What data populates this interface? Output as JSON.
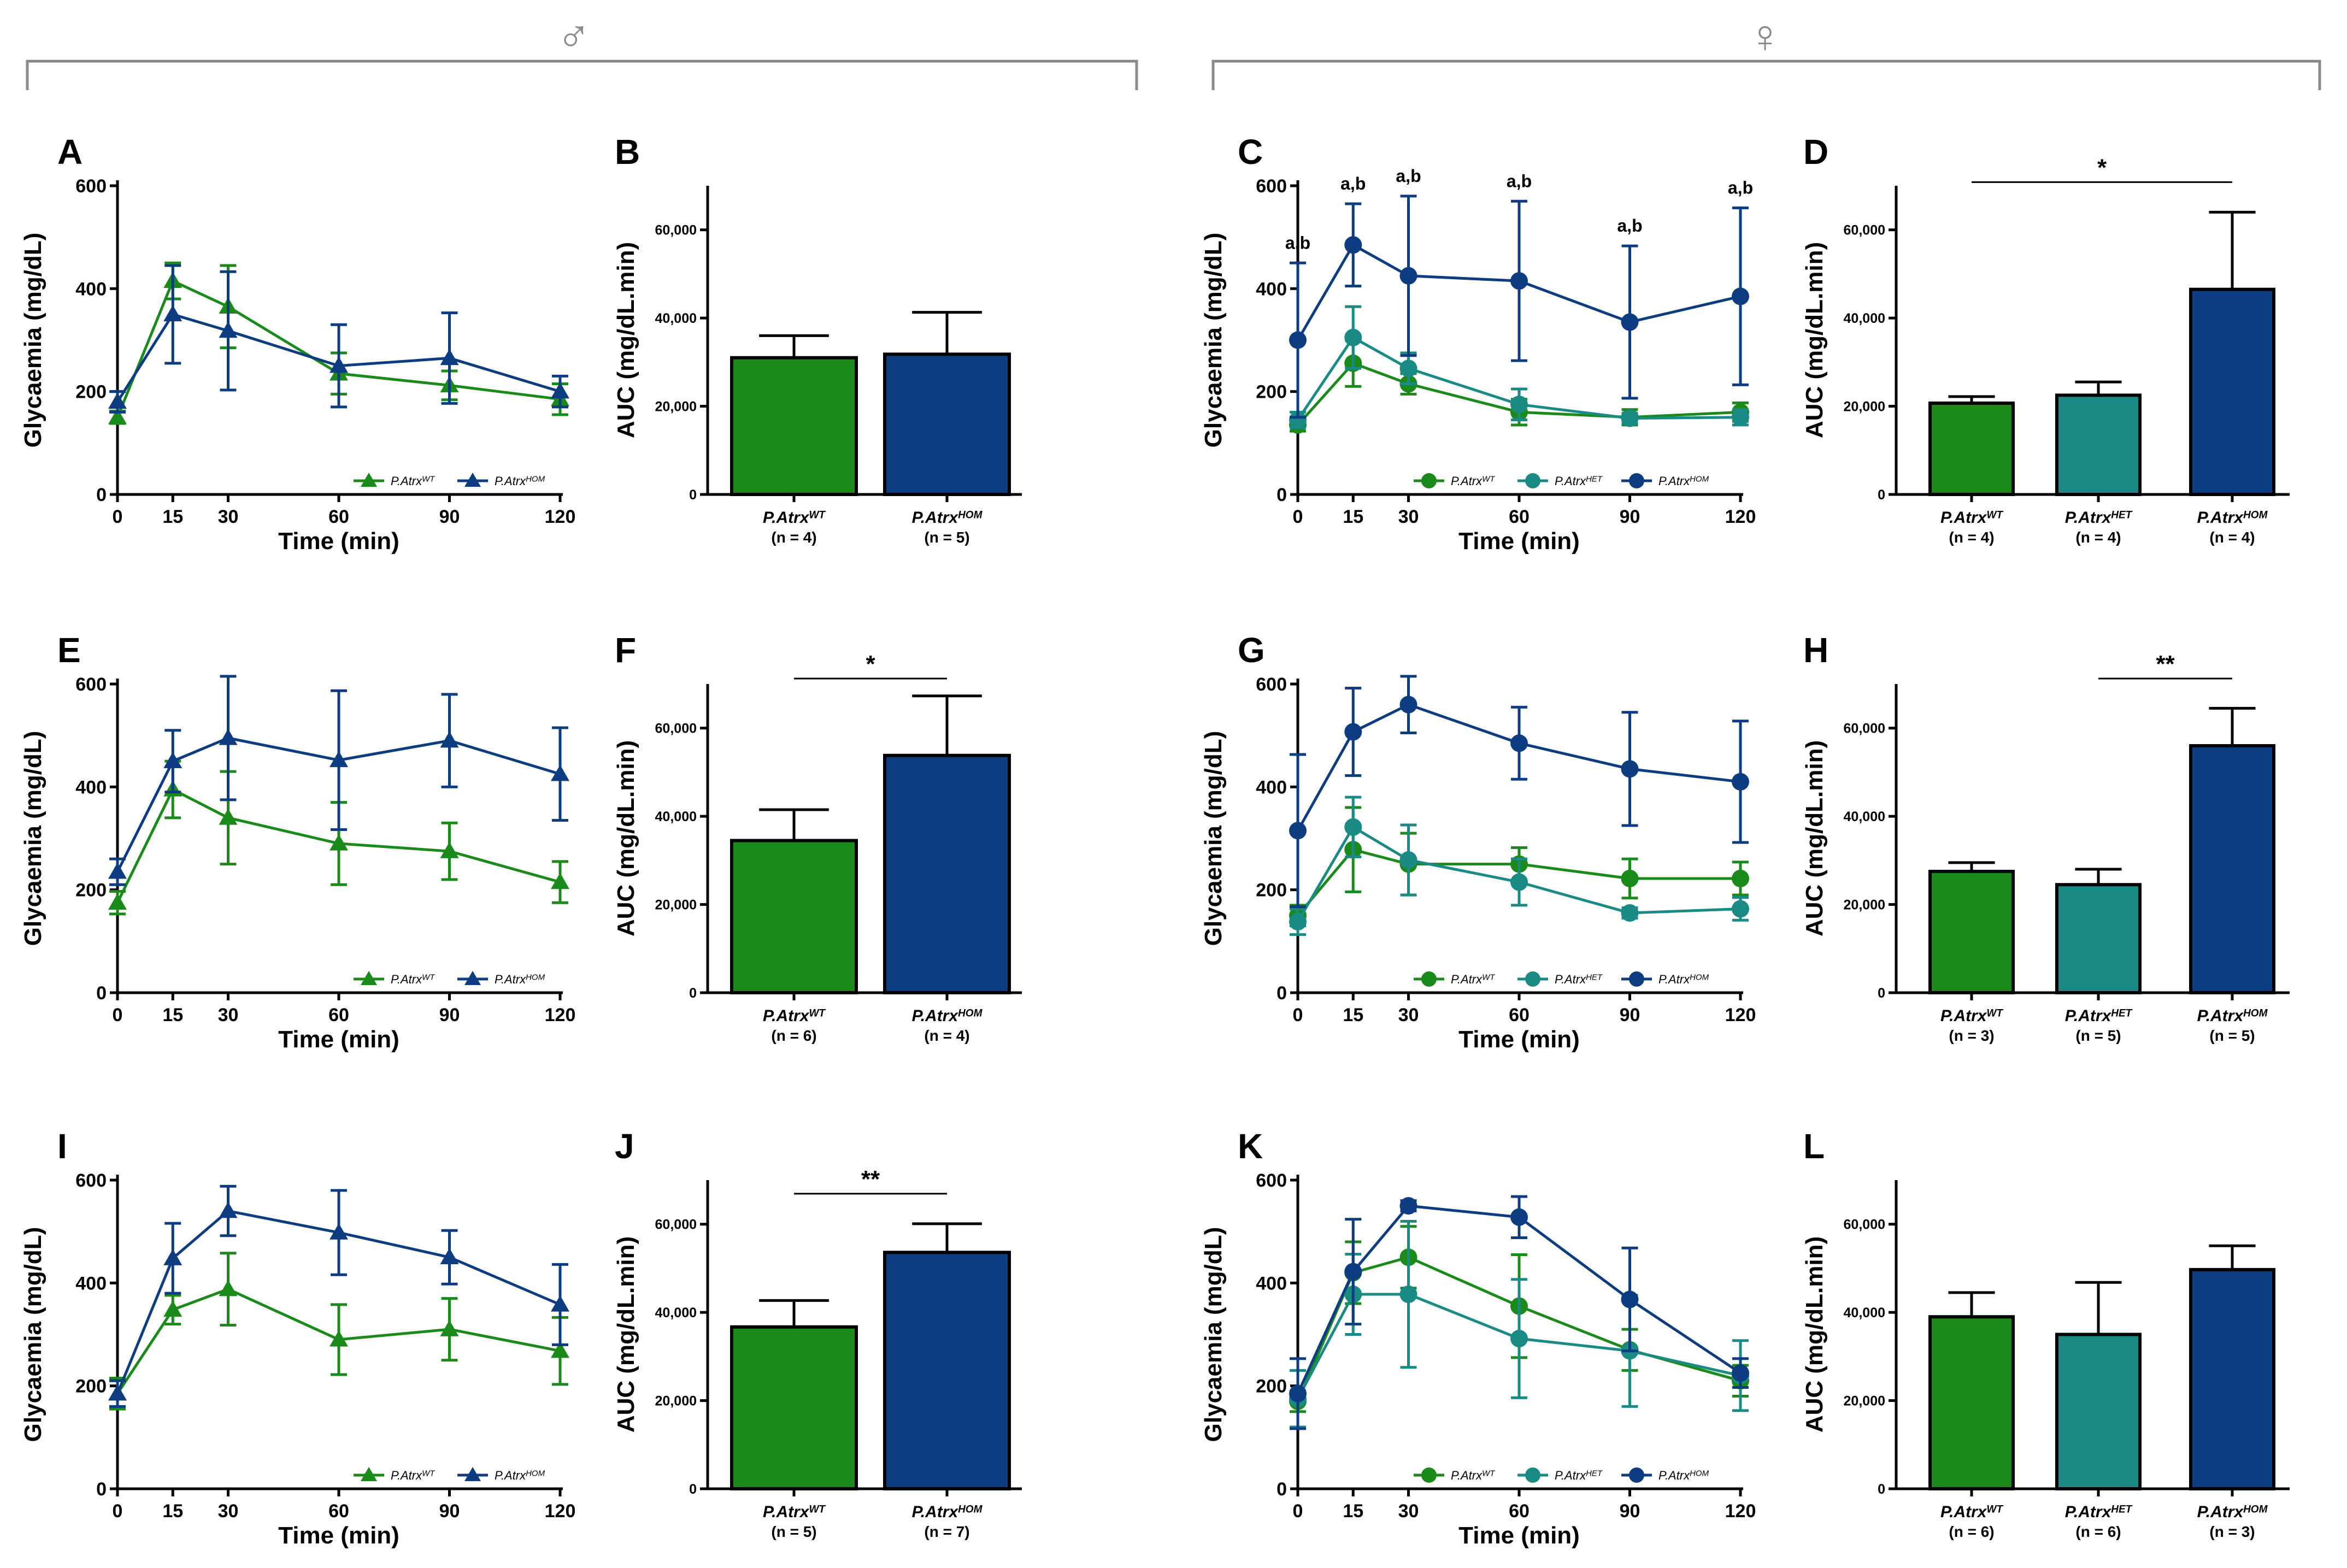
{
  "colors": {
    "wt": "#1a8a1a",
    "het": "#1a8a84",
    "hom": "#0d3d80",
    "bracket": "#8a8a8a"
  },
  "sex_groups": {
    "male_symbol": "♂",
    "female_symbol": "♀"
  },
  "chart_data": [
    {
      "id": "A",
      "type": "line",
      "panel_label": "A",
      "sex": "male",
      "marker": "triangle",
      "xlabel": "Time (min)",
      "ylabel": "Glycaemia (mg/dL)",
      "x": [
        0,
        15,
        30,
        60,
        90,
        120
      ],
      "xticks": [
        "0",
        "15",
        "30",
        "60",
        "90",
        "120"
      ],
      "ylim": [
        0,
        600
      ],
      "yticks": [
        "0",
        "200",
        "400",
        "600"
      ],
      "series": [
        {
          "name": "P.Atrx",
          "sup": "WT",
          "color_key": "wt",
          "values": [
            150,
            415,
            365,
            235,
            212,
            185
          ],
          "errors": [
            12,
            35,
            80,
            40,
            28,
            30
          ]
        },
        {
          "name": "P.Atrx",
          "sup": "HOM",
          "color_key": "hom",
          "values": [
            180,
            350,
            318,
            250,
            265,
            200
          ],
          "errors": [
            20,
            95,
            115,
            80,
            88,
            30
          ]
        }
      ]
    },
    {
      "id": "B",
      "type": "bar",
      "panel_label": "B",
      "sex": "male",
      "ylabel": "AUC (mg/dL.min)",
      "ylim": [
        0,
        70000
      ],
      "yticks": [
        "0",
        "20,000",
        "40,000",
        "60,000"
      ],
      "ytick_values": [
        0,
        20000,
        40000,
        60000
      ],
      "bars": [
        {
          "name": "P.Atrx",
          "sup": "WT",
          "n": "(n = 4)",
          "color_key": "wt",
          "value": 31000,
          "error": 5000
        },
        {
          "name": "P.Atrx",
          "sup": "HOM",
          "n": "(n = 5)",
          "color_key": "hom",
          "value": 31800,
          "error": 9500
        }
      ],
      "significance": []
    },
    {
      "id": "C",
      "type": "line",
      "panel_label": "C",
      "sex": "female",
      "marker": "circle",
      "xlabel": "Time (min)",
      "ylabel": "Glycaemia (mg/dL)",
      "x": [
        0,
        15,
        30,
        60,
        90,
        120
      ],
      "xticks": [
        "0",
        "15",
        "30",
        "60",
        "90",
        "120"
      ],
      "ylim": [
        0,
        600
      ],
      "yticks": [
        "0",
        "200",
        "400",
        "600"
      ],
      "series": [
        {
          "name": "P.Atrx",
          "sup": "WT",
          "color_key": "wt",
          "values": [
            135,
            255,
            215,
            160,
            150,
            160
          ],
          "errors": [
            12,
            45,
            20,
            25,
            15,
            18
          ]
        },
        {
          "name": "P.Atrx",
          "sup": "HET",
          "color_key": "het",
          "values": [
            145,
            305,
            245,
            175,
            148,
            150
          ],
          "errors": [
            15,
            60,
            30,
            30,
            10,
            15
          ]
        },
        {
          "name": "P.Atrx",
          "sup": "HOM",
          "color_key": "hom",
          "values": [
            300,
            485,
            425,
            415,
            335,
            385
          ],
          "errors": [
            150,
            80,
            155,
            155,
            148,
            172
          ]
        }
      ],
      "annotations": [
        "a,b",
        "a,b",
        "a,b",
        "a,b",
        "a,b",
        "a,b"
      ]
    },
    {
      "id": "D",
      "type": "bar",
      "panel_label": "D",
      "sex": "female",
      "ylabel": "AUC (mg/dL.min)",
      "ylim": [
        0,
        70000
      ],
      "yticks": [
        "0",
        "20,000",
        "40,000",
        "60,000"
      ],
      "ytick_values": [
        0,
        20000,
        40000,
        60000
      ],
      "bars": [
        {
          "name": "P.Atrx",
          "sup": "WT",
          "n": "(n = 4)",
          "color_key": "wt",
          "value": 20700,
          "error": 1500
        },
        {
          "name": "P.Atrx",
          "sup": "HET",
          "n": "(n = 4)",
          "color_key": "het",
          "value": 22500,
          "error": 3000
        },
        {
          "name": "P.Atrx",
          "sup": "HOM",
          "n": "(n = 4)",
          "color_key": "hom",
          "value": 46500,
          "error": 17500
        }
      ],
      "significance": [
        {
          "from": 0,
          "to": 2,
          "label": "*"
        }
      ]
    },
    {
      "id": "E",
      "type": "line",
      "panel_label": "E",
      "sex": "male",
      "marker": "triangle",
      "xlabel": "Time (min)",
      "ylabel": "Glycaemia (mg/dL)",
      "x": [
        0,
        15,
        30,
        60,
        90,
        120
      ],
      "xticks": [
        "0",
        "15",
        "30",
        "60",
        "90",
        "120"
      ],
      "ylim": [
        0,
        600
      ],
      "yticks": [
        "0",
        "200",
        "400",
        "600"
      ],
      "series": [
        {
          "name": "P.Atrx",
          "sup": "WT",
          "color_key": "wt",
          "values": [
            175,
            395,
            340,
            290,
            275,
            215
          ],
          "errors": [
            22,
            55,
            90,
            80,
            55,
            40
          ]
        },
        {
          "name": "P.Atrx",
          "sup": "HOM",
          "color_key": "hom",
          "values": [
            235,
            450,
            495,
            452,
            490,
            425
          ],
          "errors": [
            25,
            60,
            120,
            135,
            90,
            90
          ]
        }
      ]
    },
    {
      "id": "F",
      "type": "bar",
      "panel_label": "F",
      "sex": "male",
      "ylabel": "AUC (mg/dL.min)",
      "ylim": [
        0,
        70000
      ],
      "yticks": [
        "0",
        "20,000",
        "40,000",
        "60,000"
      ],
      "ytick_values": [
        0,
        20000,
        40000,
        60000
      ],
      "bars": [
        {
          "name": "P.Atrx",
          "sup": "WT",
          "n": "(n = 6)",
          "color_key": "wt",
          "value": 34500,
          "error": 7000
        },
        {
          "name": "P.Atrx",
          "sup": "HOM",
          "n": "(n = 4)",
          "color_key": "hom",
          "value": 53800,
          "error": 13500
        }
      ],
      "significance": [
        {
          "from": 0,
          "to": 1,
          "label": "*"
        }
      ]
    },
    {
      "id": "G",
      "type": "line",
      "panel_label": "G",
      "sex": "female",
      "marker": "circle",
      "xlabel": "Time (min)",
      "ylabel": "Glycaemia (mg/dL)",
      "x": [
        0,
        15,
        30,
        60,
        90,
        120
      ],
      "xticks": [
        "0",
        "15",
        "30",
        "60",
        "90",
        "120"
      ],
      "ylim": [
        0,
        600
      ],
      "yticks": [
        "0",
        "200",
        "400",
        "600"
      ],
      "series": [
        {
          "name": "P.Atrx",
          "sup": "WT",
          "color_key": "wt",
          "values": [
            150,
            278,
            250,
            250,
            222,
            222
          ],
          "errors": [
            20,
            82,
            60,
            32,
            38,
            32
          ]
        },
        {
          "name": "P.Atrx",
          "sup": "HET",
          "color_key": "het",
          "values": [
            138,
            322,
            258,
            215,
            155,
            163
          ],
          "errors": [
            25,
            58,
            68,
            45,
            10,
            22
          ]
        },
        {
          "name": "P.Atrx",
          "sup": "HOM",
          "color_key": "hom",
          "values": [
            315,
            507,
            560,
            485,
            435,
            410
          ],
          "errors": [
            148,
            85,
            55,
            70,
            110,
            118
          ]
        }
      ]
    },
    {
      "id": "H",
      "type": "bar",
      "panel_label": "H",
      "sex": "female",
      "ylabel": "AUC (mg/dL.min)",
      "ylim": [
        0,
        70000
      ],
      "yticks": [
        "0",
        "20,000",
        "40,000",
        "60,000"
      ],
      "ytick_values": [
        0,
        20000,
        40000,
        60000
      ],
      "bars": [
        {
          "name": "P.Atrx",
          "sup": "WT",
          "n": "(n = 3)",
          "color_key": "wt",
          "value": 27500,
          "error": 2000
        },
        {
          "name": "P.Atrx",
          "sup": "HET",
          "n": "(n = 5)",
          "color_key": "het",
          "value": 24500,
          "error": 3500
        },
        {
          "name": "P.Atrx",
          "sup": "HOM",
          "n": "(n = 5)",
          "color_key": "hom",
          "value": 56000,
          "error": 8500
        }
      ],
      "significance": [
        {
          "from": 1,
          "to": 2,
          "label": "**"
        }
      ]
    },
    {
      "id": "I",
      "type": "line",
      "panel_label": "I",
      "sex": "male",
      "marker": "triangle",
      "xlabel": "Time (min)",
      "ylabel": "Glycaemia (mg/dL)",
      "x": [
        0,
        15,
        30,
        60,
        90,
        120
      ],
      "xticks": [
        "0",
        "15",
        "30",
        "60",
        "90",
        "120"
      ],
      "ylim": [
        0,
        600
      ],
      "yticks": [
        "0",
        "200",
        "400",
        "600"
      ],
      "series": [
        {
          "name": "P.Atrx",
          "sup": "WT",
          "color_key": "wt",
          "values": [
            185,
            348,
            388,
            290,
            310,
            268
          ],
          "errors": [
            30,
            28,
            70,
            68,
            60,
            65
          ]
        },
        {
          "name": "P.Atrx",
          "sup": "HOM",
          "color_key": "hom",
          "values": [
            185,
            448,
            540,
            498,
            450,
            358
          ],
          "errors": [
            25,
            68,
            48,
            82,
            52,
            78
          ]
        }
      ]
    },
    {
      "id": "J",
      "type": "bar",
      "panel_label": "J",
      "sex": "male",
      "ylabel": "AUC (mg/dL.min)",
      "ylim": [
        0,
        70000
      ],
      "yticks": [
        "0",
        "20,000",
        "40,000",
        "60,000"
      ],
      "ytick_values": [
        0,
        20000,
        40000,
        60000
      ],
      "bars": [
        {
          "name": "P.Atrx",
          "sup": "WT",
          "n": "(n = 5)",
          "color_key": "wt",
          "value": 36700,
          "error": 6000
        },
        {
          "name": "P.Atrx",
          "sup": "HOM",
          "n": "(n = 7)",
          "color_key": "hom",
          "value": 53600,
          "error": 6500
        }
      ],
      "significance": [
        {
          "from": 0,
          "to": 1,
          "label": "**"
        }
      ]
    },
    {
      "id": "K",
      "type": "line",
      "panel_label": "K",
      "sex": "female",
      "marker": "circle",
      "xlabel": "Time (min)",
      "ylabel": "Glycaemia (mg/dL)",
      "x": [
        0,
        15,
        30,
        60,
        90,
        120
      ],
      "xticks": [
        "0",
        "15",
        "30",
        "60",
        "90",
        "120"
      ],
      "ylim": [
        0,
        600
      ],
      "yticks": [
        "0",
        "200",
        "400",
        "600"
      ],
      "series": [
        {
          "name": "P.Atrx",
          "sup": "WT",
          "color_key": "wt",
          "values": [
            170,
            420,
            450,
            355,
            270,
            210
          ],
          "errors": [
            20,
            60,
            60,
            100,
            40,
            30
          ]
        },
        {
          "name": "P.Atrx",
          "sup": "HET",
          "color_key": "het",
          "values": [
            175,
            378,
            378,
            292,
            268,
            220
          ],
          "errors": [
            55,
            78,
            142,
            115,
            108,
            68
          ]
        },
        {
          "name": "P.Atrx",
          "sup": "HOM",
          "color_key": "hom",
          "values": [
            185,
            422,
            550,
            528,
            368,
            225
          ],
          "errors": [
            68,
            102,
            10,
            40,
            100,
            28
          ]
        }
      ]
    },
    {
      "id": "L",
      "type": "bar",
      "panel_label": "L",
      "sex": "female",
      "ylabel": "AUC (mg/dL.min)",
      "ylim": [
        0,
        70000
      ],
      "yticks": [
        "0",
        "20,000",
        "40,000",
        "60,000"
      ],
      "ytick_values": [
        0,
        20000,
        40000,
        60000
      ],
      "bars": [
        {
          "name": "P.Atrx",
          "sup": "WT",
          "n": "(n = 6)",
          "color_key": "wt",
          "value": 39000,
          "error": 5500
        },
        {
          "name": "P.Atrx",
          "sup": "HET",
          "n": "(n = 6)",
          "color_key": "het",
          "value": 35000,
          "error": 11800
        },
        {
          "name": "P.Atrx",
          "sup": "HOM",
          "n": "(n = 3)",
          "color_key": "hom",
          "value": 49700,
          "error": 5400
        }
      ],
      "significance": []
    }
  ]
}
